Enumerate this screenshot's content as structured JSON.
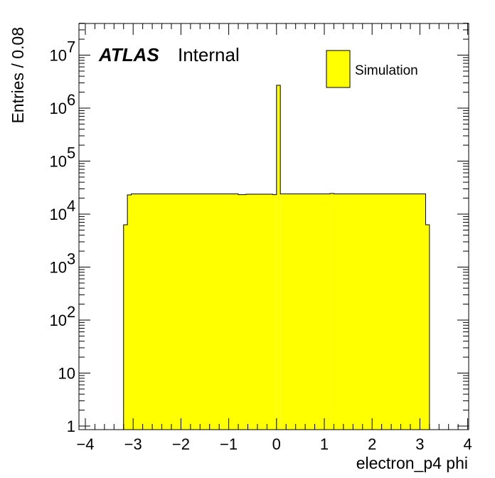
{
  "chart_data": {
    "type": "bar",
    "histtype": "step-filled",
    "xlabel": "electron_p4 phi",
    "ylabel": "Entries / 0.08",
    "xlim": [
      -4,
      4
    ],
    "ylim": [
      1,
      40000000
    ],
    "yscale": "log",
    "bin_width": 0.08,
    "fill_color": "#ffff00",
    "edge_color": "#000000",
    "x_ticks": [
      -4,
      -3,
      -2,
      -1,
      0,
      1,
      2,
      3,
      4
    ],
    "x_tick_labels": [
      "−4",
      "−3",
      "−2",
      "−1",
      "0",
      "1",
      "2",
      "3",
      "4"
    ],
    "y_ticks": [
      {
        "value": 1,
        "base": "1",
        "exp": ""
      },
      {
        "value": 10,
        "base": "10",
        "exp": ""
      },
      {
        "value": 100,
        "base": "10",
        "exp": "2"
      },
      {
        "value": 1000,
        "base": "10",
        "exp": "3"
      },
      {
        "value": 10000,
        "base": "10",
        "exp": "4"
      },
      {
        "value": 100000,
        "base": "10",
        "exp": "5"
      },
      {
        "value": 1000000,
        "base": "10",
        "exp": "6"
      },
      {
        "value": 10000000,
        "base": "10",
        "exp": "7"
      }
    ],
    "bins": [
      {
        "x0": -3.2,
        "x1": -3.12,
        "y": 6300
      },
      {
        "x0": -3.12,
        "x1": -3.04,
        "y": 23000
      },
      {
        "x0": -3.04,
        "x1": -0.8,
        "y": 24000
      },
      {
        "x0": -0.8,
        "x1": -0.64,
        "y": 23300
      },
      {
        "x0": -0.64,
        "x1": -0.08,
        "y": 23800
      },
      {
        "x0": -0.08,
        "x1": 0.0,
        "y": 23300
      },
      {
        "x0": 0.0,
        "x1": 0.08,
        "y": 2700000
      },
      {
        "x0": 0.08,
        "x1": 1.12,
        "y": 24000
      },
      {
        "x0": 1.12,
        "x1": 1.2,
        "y": 24500
      },
      {
        "x0": 1.2,
        "x1": 3.12,
        "y": 24000
      },
      {
        "x0": 3.12,
        "x1": 3.2,
        "y": 6300
      }
    ],
    "legend": {
      "placement": "top-right",
      "entries": [
        "Simulation"
      ]
    }
  },
  "labels": {
    "atlas": "ATLAS",
    "internal": "Internal"
  }
}
